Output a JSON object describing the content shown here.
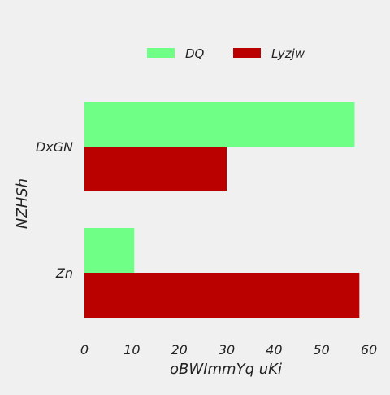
{
  "chart_data": {
    "type": "bar",
    "orientation": "horizontal",
    "categories": [
      "DxGN",
      "Zn"
    ],
    "series": [
      {
        "name": "DQ",
        "values": [
          57,
          10.5
        ],
        "color": "#70ff86"
      },
      {
        "name": "Lyzjw",
        "values": [
          30,
          58
        ],
        "color": "#bb0000"
      }
    ],
    "xlabel": "oBWImmYq uKi",
    "ylabel": "NZHSh",
    "xlim": [
      0,
      60
    ],
    "xticks": [
      0,
      10,
      20,
      30,
      40,
      50,
      60
    ],
    "grid": false,
    "legend": "top-center",
    "background": "#f0f0f0"
  }
}
